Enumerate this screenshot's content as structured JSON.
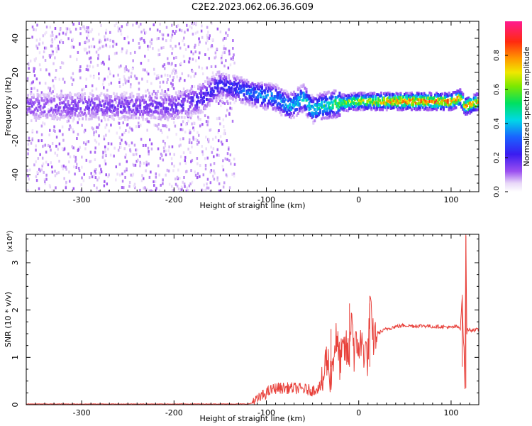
{
  "figure": {
    "title": "C2E2.2023.062.06.36.G09"
  },
  "chart_data": [
    {
      "type": "heatmap",
      "title": "C2E2.2023.062.06.36.G09",
      "xlabel": "Height of straight line (km)",
      "ylabel": "Frequency (Hz)",
      "xlim": [
        -360,
        130
      ],
      "ylim": [
        -50,
        50
      ],
      "xticks": [
        -300,
        -200,
        -100,
        0,
        100
      ],
      "yticks": [
        -40,
        -20,
        0,
        20,
        40
      ],
      "colorbar": {
        "label": "Normalized spectral amplitude",
        "range": [
          0,
          1
        ],
        "ticks": [
          "0.0",
          "0.2",
          "0.4",
          "0.6",
          "0.8"
        ],
        "colormap": "rainbow (purple → blue → cyan → green → yellow → orange → red → magenta)"
      },
      "ridge_center_hz": {
        "x": [
          -360,
          -300,
          -250,
          -200,
          -170,
          -150,
          -130,
          -110,
          -90,
          -75,
          -60,
          -50,
          -40,
          -30,
          -20,
          0,
          50,
          100,
          110,
          115,
          130
        ],
        "y": [
          0,
          0,
          0,
          0,
          5,
          13,
          10,
          7,
          5,
          0,
          5,
          -2,
          0,
          1,
          2,
          3,
          3,
          3,
          5,
          0,
          3
        ]
      },
      "ridge_peak_amplitude": {
        "x": [
          -360,
          -200,
          -150,
          -120,
          -100,
          -80,
          -60,
          -40,
          -20,
          0,
          50,
          100,
          130
        ],
        "y": [
          0.15,
          0.18,
          0.25,
          0.35,
          0.4,
          0.42,
          0.45,
          0.5,
          0.6,
          0.7,
          0.85,
          0.85,
          0.8
        ]
      }
    },
    {
      "type": "line",
      "xlabel": "Height of straight line (km)",
      "ylabel": "SNR (10 * v/v)",
      "y_multiplier": "(x10⁴)",
      "xlim": [
        -360,
        130
      ],
      "ylim": [
        0,
        3.6
      ],
      "xticks": [
        -300,
        -200,
        -100,
        0,
        100
      ],
      "yticks": [
        0,
        1,
        2,
        3
      ],
      "color": "#e8413b",
      "series": [
        {
          "x": [
            -360,
            -300,
            -250,
            -200,
            -150,
            -120,
            -110,
            -100,
            -90,
            -80,
            -70,
            -60,
            -50,
            -40,
            -35,
            -30,
            -25,
            -20,
            -15,
            -10,
            -8,
            -5,
            0,
            5,
            10,
            12,
            15,
            20,
            30,
            40,
            50,
            60,
            70,
            80,
            90,
            100,
            105,
            110,
            112,
            113,
            114,
            115,
            116,
            117,
            118,
            120,
            130
          ],
          "y": [
            0.01,
            0.01,
            0.01,
            0.01,
            0.01,
            0.01,
            0.05,
            0.2,
            0.3,
            0.3,
            0.3,
            0.28,
            0.25,
            0.35,
            1.0,
            0.6,
            1.4,
            0.9,
            1.2,
            1.0,
            2.1,
            1.1,
            1.3,
            1.2,
            1.0,
            2.1,
            1.4,
            1.5,
            1.6,
            1.65,
            1.68,
            1.66,
            1.67,
            1.65,
            1.65,
            1.63,
            1.65,
            1.62,
            2.3,
            1.5,
            1.2,
            0.35,
            3.6,
            1.5,
            1.6,
            1.58,
            1.58
          ]
        }
      ],
      "spikes": [
        {
          "x": -30,
          "y": 1.6
        },
        {
          "x": -10,
          "y": 2.14
        },
        {
          "x": 12,
          "y": 2.14
        },
        {
          "x": 112,
          "y": 2.32
        },
        {
          "x": 116,
          "y": 3.6
        }
      ]
    }
  ]
}
